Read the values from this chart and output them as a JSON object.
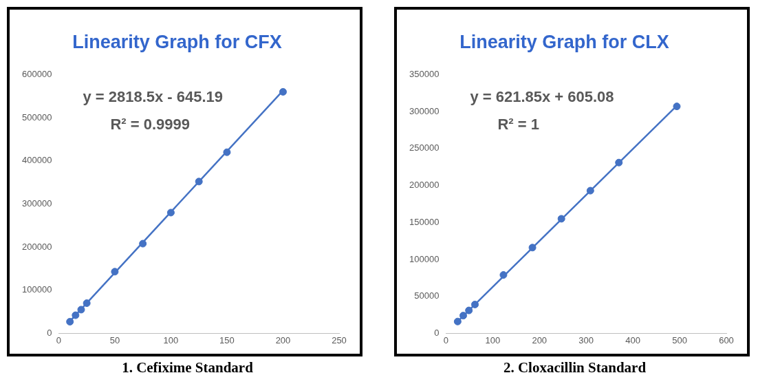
{
  "chart_data": [
    {
      "type": "scatter",
      "title": "Linearity Graph for CFX",
      "x": [
        10,
        15,
        20,
        25,
        50,
        75,
        100,
        125,
        150,
        200
      ],
      "grid": false,
      "legend": false,
      "series": [
        {
          "color": "#4472c4",
          "marker": "circle",
          "values": [
            27000,
            42000,
            55000,
            70000,
            143000,
            208000,
            280000,
            352000,
            420000,
            560000
          ]
        },
        {
          "type": "line",
          "color": "#4472c4",
          "marker": "none",
          "x": [
            10,
            200
          ],
          "values": [
            28000,
            563000
          ]
        }
      ],
      "xlim": [
        0,
        250
      ],
      "xticks": [
        0,
        50,
        100,
        150,
        200,
        250
      ],
      "ylim": [
        0,
        600000
      ],
      "yticks": [
        0,
        100000,
        200000,
        300000,
        400000,
        500000,
        600000
      ],
      "annotations": [
        "y = 2818.5x - 645.19",
        "R² = 0.9999",
        "1. Cefixime Standard"
      ]
    },
    {
      "type": "scatter",
      "title": "Linearity Graph for CLX",
      "x": [
        25,
        37,
        49,
        62,
        123,
        185,
        247,
        309,
        370,
        494
      ],
      "grid": false,
      "legend": false,
      "series": [
        {
          "color": "#4472c4",
          "marker": "circle",
          "values": [
            16000,
            24000,
            31000,
            39000,
            79000,
            116000,
            155000,
            193000,
            231000,
            307000
          ]
        },
        {
          "type": "line",
          "color": "#4472c4",
          "marker": "none",
          "x": [
            25,
            494
          ],
          "values": [
            16000,
            308000
          ]
        }
      ],
      "xlim": [
        0,
        600
      ],
      "xticks": [
        0,
        100,
        200,
        300,
        400,
        500,
        600
      ],
      "ylim": [
        0,
        350000
      ],
      "yticks": [
        0,
        50000,
        100000,
        150000,
        200000,
        250000,
        300000,
        350000
      ],
      "annotations": [
        "y = 621.85x + 605.08",
        "R² = 1",
        "2. Cloxacillin Standard"
      ]
    }
  ]
}
